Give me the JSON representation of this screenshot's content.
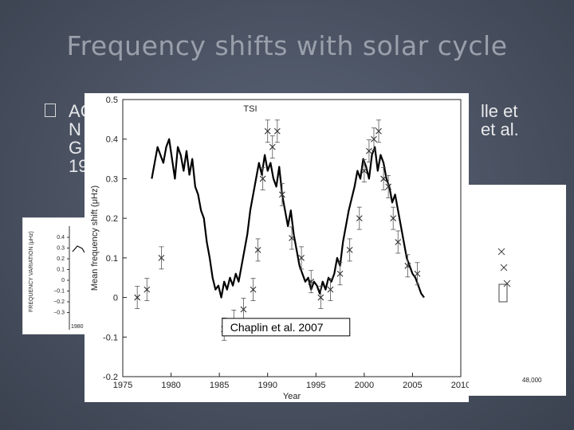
{
  "slide": {
    "title": "Frequency shifts with solar cycle",
    "bullet_lines": [
      "AC",
      "N",
      "G",
      "19"
    ],
    "bullet_tail_lines": [
      "lle et",
      "et al."
    ]
  },
  "left_figure": {
    "ylabel": "FREQUENCY VARIATION (μHz)",
    "yticks": [
      "0.4",
      "0.3",
      "0.2",
      "0.1",
      "0",
      "−0.1",
      "−0.2",
      "−0.3"
    ],
    "xtick": "1980"
  },
  "right_figure": {
    "xtick": "48,000"
  },
  "chart_data": {
    "type": "line",
    "title": "",
    "annotation": "Chaplin et al. 2007",
    "xlabel": "Year",
    "ylabel": "Mean frequency shift (μHz)",
    "legend": "TSI",
    "xlim": [
      1975,
      2010
    ],
    "ylim": [
      -0.2,
      0.5
    ],
    "xticks": [
      1975,
      1980,
      1985,
      1990,
      1995,
      2000,
      2005,
      2010
    ],
    "yticks": [
      -0.2,
      -0.1,
      0,
      0.1,
      0.2,
      0.3,
      0.4,
      0.5
    ],
    "series": [
      {
        "name": "TSI",
        "x": [
          1978.0,
          1978.3,
          1978.6,
          1978.9,
          1979.2,
          1979.5,
          1979.8,
          1980.1,
          1980.4,
          1980.7,
          1981.0,
          1981.3,
          1981.6,
          1981.9,
          1982.2,
          1982.5,
          1982.8,
          1983.1,
          1983.4,
          1983.7,
          1984.0,
          1984.3,
          1984.6,
          1984.9,
          1985.2,
          1985.5,
          1985.8,
          1986.1,
          1986.4,
          1986.7,
          1987.0,
          1987.3,
          1987.6,
          1987.9,
          1988.2,
          1988.5,
          1988.8,
          1989.1,
          1989.4,
          1989.7,
          1990.0,
          1990.3,
          1990.6,
          1990.9,
          1991.2,
          1991.5,
          1991.8,
          1992.1,
          1992.4,
          1992.7,
          1993.0,
          1993.3,
          1993.6,
          1993.9,
          1994.2,
          1994.5,
          1994.8,
          1995.1,
          1995.4,
          1995.7,
          1996.0,
          1996.3,
          1996.6,
          1996.9,
          1997.2,
          1997.5,
          1997.8,
          1998.1,
          1998.4,
          1998.7,
          1999.0,
          1999.3,
          1999.6,
          1999.9,
          2000.2,
          2000.5,
          2000.8,
          2001.1,
          2001.4,
          2001.7,
          2002.0,
          2002.3,
          2002.6,
          2002.9,
          2003.2,
          2003.5,
          2003.8,
          2004.1,
          2004.4,
          2004.7,
          2005.0,
          2005.3,
          2005.6,
          2005.9,
          2006.2
        ],
        "values": [
          0.3,
          0.34,
          0.38,
          0.36,
          0.34,
          0.38,
          0.4,
          0.35,
          0.3,
          0.38,
          0.36,
          0.32,
          0.37,
          0.31,
          0.35,
          0.28,
          0.26,
          0.22,
          0.2,
          0.14,
          0.1,
          0.05,
          0.02,
          0.03,
          0.0,
          0.04,
          0.02,
          0.05,
          0.03,
          0.06,
          0.04,
          0.08,
          0.12,
          0.16,
          0.22,
          0.26,
          0.3,
          0.34,
          0.31,
          0.36,
          0.32,
          0.34,
          0.3,
          0.28,
          0.33,
          0.26,
          0.22,
          0.18,
          0.22,
          0.16,
          0.12,
          0.08,
          0.06,
          0.04,
          0.05,
          0.02,
          0.04,
          0.03,
          0.01,
          0.04,
          0.02,
          0.05,
          0.04,
          0.06,
          0.1,
          0.08,
          0.14,
          0.18,
          0.22,
          0.25,
          0.28,
          0.32,
          0.3,
          0.35,
          0.33,
          0.3,
          0.36,
          0.38,
          0.32,
          0.36,
          0.34,
          0.3,
          0.28,
          0.24,
          0.26,
          0.22,
          0.18,
          0.14,
          0.1,
          0.08,
          0.06,
          0.05,
          0.03,
          0.01,
          0.0
        ]
      },
      {
        "name": "Mean frequency shift",
        "x": [
          1976.5,
          1977.5,
          1979.0,
          1985.5,
          1986.5,
          1987.5,
          1988.5,
          1989.0,
          1989.5,
          1990.0,
          1990.5,
          1991.0,
          1991.5,
          1992.5,
          1993.5,
          1994.5,
          1995.5,
          1996.5,
          1997.5,
          1998.5,
          1999.5,
          2000.0,
          2000.5,
          2001.0,
          2001.5,
          2002.0,
          2002.5,
          2003.0,
          2003.5,
          2004.5,
          2005.5
        ],
        "values": [
          0.0,
          0.02,
          0.1,
          -0.08,
          -0.06,
          -0.03,
          0.02,
          0.12,
          0.3,
          0.42,
          0.38,
          0.42,
          0.26,
          0.15,
          0.1,
          0.04,
          0.0,
          0.02,
          0.06,
          0.12,
          0.2,
          0.32,
          0.37,
          0.4,
          0.42,
          0.3,
          0.28,
          0.2,
          0.14,
          0.08,
          0.06
        ]
      }
    ]
  }
}
